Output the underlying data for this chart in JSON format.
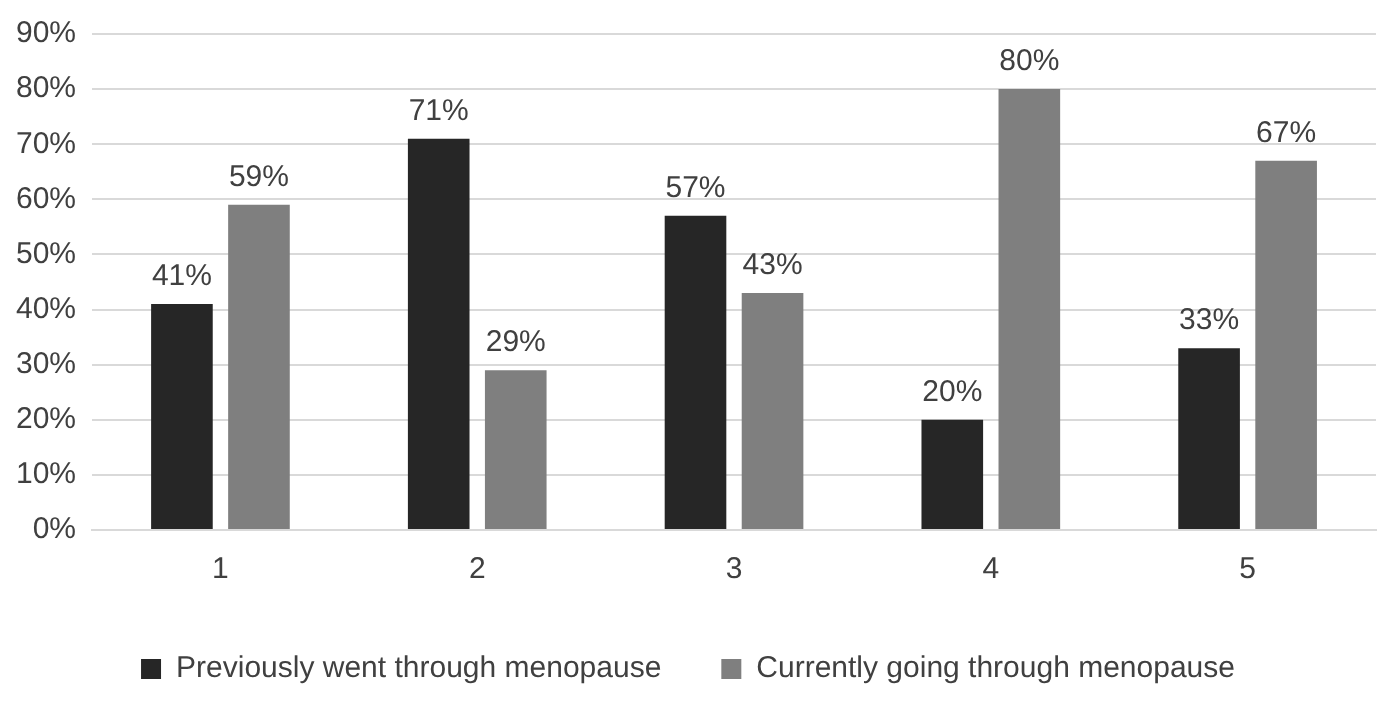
{
  "chart_data": {
    "type": "bar",
    "categories": [
      "1",
      "2",
      "3",
      "4",
      "5"
    ],
    "series": [
      {
        "name": "Previously went through menopause",
        "color": "#262626",
        "values": [
          41,
          71,
          57,
          20,
          33
        ],
        "value_labels": [
          "41%",
          "71%",
          "57%",
          "20%",
          "33%"
        ]
      },
      {
        "name": "Currently going through menopause",
        "color": "#7f7f7f",
        "values": [
          59,
          29,
          43,
          80,
          67
        ],
        "value_labels": [
          "59%",
          "29%",
          "43%",
          "80%",
          "67%"
        ]
      }
    ],
    "ylim": [
      0,
      90
    ],
    "yticks": [
      {
        "value": 0,
        "label": "0%"
      },
      {
        "value": 10,
        "label": "10%"
      },
      {
        "value": 20,
        "label": "20%"
      },
      {
        "value": 30,
        "label": "30%"
      },
      {
        "value": 40,
        "label": "40%"
      },
      {
        "value": 50,
        "label": "50%"
      },
      {
        "value": 60,
        "label": "60%"
      },
      {
        "value": 70,
        "label": "70%"
      },
      {
        "value": 80,
        "label": "80%"
      },
      {
        "value": 90,
        "label": "90%"
      }
    ],
    "grid": "y",
    "legend": "bottom"
  }
}
